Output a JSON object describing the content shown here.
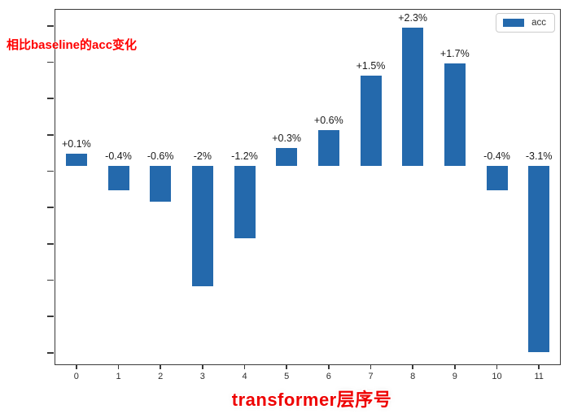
{
  "chart_data": {
    "type": "bar",
    "title": "",
    "categories": [
      "0",
      "1",
      "2",
      "3",
      "4",
      "5",
      "6",
      "7",
      "8",
      "9",
      "10",
      "11"
    ],
    "values": [
      0.1,
      -0.4,
      -0.6,
      -2,
      -1.2,
      0.3,
      0.6,
      1.5,
      2.3,
      1.7,
      -0.4,
      -3.1
    ],
    "bar_labels": [
      "+0.1%",
      "-0.4%",
      "-0.6%",
      "-2%",
      "-1.2%",
      "+0.3%",
      "+0.6%",
      "+1.5%",
      "+2.3%",
      "+1.7%",
      "-0.4%",
      "-3.1%"
    ],
    "xlabel": "transformer层序号",
    "ylabel": "相比baseline的acc变化",
    "legend_entries": [
      "acc"
    ],
    "legend_position": "upper right",
    "grid": false,
    "ylim": [
      -3.4,
      2.6
    ],
    "bar_color": "#2469ac",
    "annotation_color": "#ff0000",
    "axis_color": "#3a3a3a"
  }
}
